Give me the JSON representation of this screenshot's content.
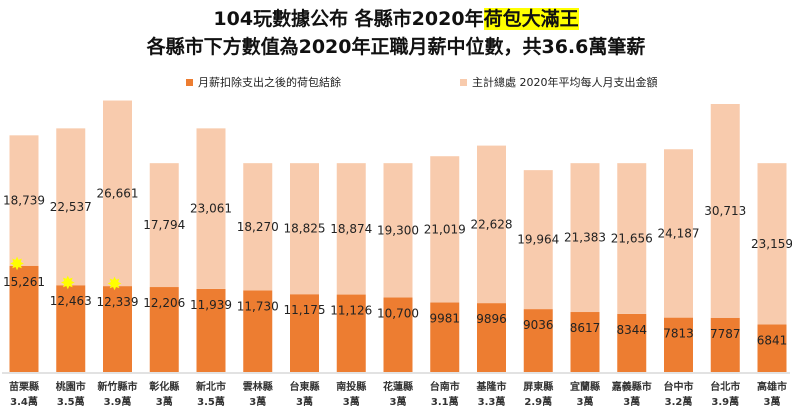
{
  "title_line1_prefix": "104玩數據公布  各縣市2020年",
  "title_line1_highlight": "荷包大滿王",
  "title_line2": "各縣市下方數值為2020年正職月薪中位數，共36.6萬筆薪",
  "colors": {
    "balance": "#ED7D31",
    "expense": "#F8CBAD",
    "highlight": "#FFFF00",
    "star": "#FFFF00"
  },
  "chart_data": {
    "type": "bar",
    "stacked": true,
    "grid": false,
    "legend_position": "top",
    "categories": [
      "苗栗縣",
      "桃園市",
      "新竹縣市",
      "彰化縣",
      "新北市",
      "雲林縣",
      "台東縣",
      "南投縣",
      "花蓮縣",
      "台南市",
      "基隆市",
      "屏東縣",
      "宜蘭縣",
      "嘉義縣市",
      "台中市",
      "台北市",
      "高雄市"
    ],
    "median_salary_labels": [
      "3.4萬",
      "3.5萬",
      "3.9萬",
      "3萬",
      "3.5萬",
      "3萬",
      "3萬",
      "3萬",
      "3萬",
      "3.1萬",
      "3.3萬",
      "2.9萬",
      "3萬",
      "3萬",
      "3.2萬",
      "3.9萬",
      "3萬"
    ],
    "series": [
      {
        "name": "月薪扣除支出之後的荷包結餘",
        "values": [
          15261,
          12463,
          12339,
          12206,
          11939,
          11730,
          11175,
          11126,
          10700,
          9981,
          9896,
          9036,
          8617,
          8344,
          7813,
          7787,
          6841
        ],
        "labels": [
          "15,261",
          "12,463",
          "12,339",
          "12,206",
          "11,939",
          "11,730",
          "11,175",
          "11,126",
          "10,700",
          "9981",
          "9896",
          "9036",
          "8617",
          "8344",
          "7813",
          "7787",
          "6841"
        ]
      },
      {
        "name": "主計總處 2020年平均每人月支出金額",
        "values": [
          18739,
          22537,
          26661,
          17794,
          23061,
          18270,
          18825,
          18874,
          19300,
          21019,
          22628,
          19964,
          21383,
          21656,
          24187,
          30713,
          23159
        ],
        "labels": [
          "18,739",
          "22,537",
          "26,661",
          "17,794",
          "23,061",
          "18,270",
          "18,825",
          "18,874",
          "19,300",
          "21,019",
          "22,628",
          "19,964",
          "21,383",
          "21,656",
          "24,187",
          "30,713",
          "23,159"
        ]
      }
    ],
    "starred_categories": [
      "苗栗縣",
      "桃園市",
      "新竹縣市"
    ],
    "ylim": [
      0,
      40000
    ]
  }
}
